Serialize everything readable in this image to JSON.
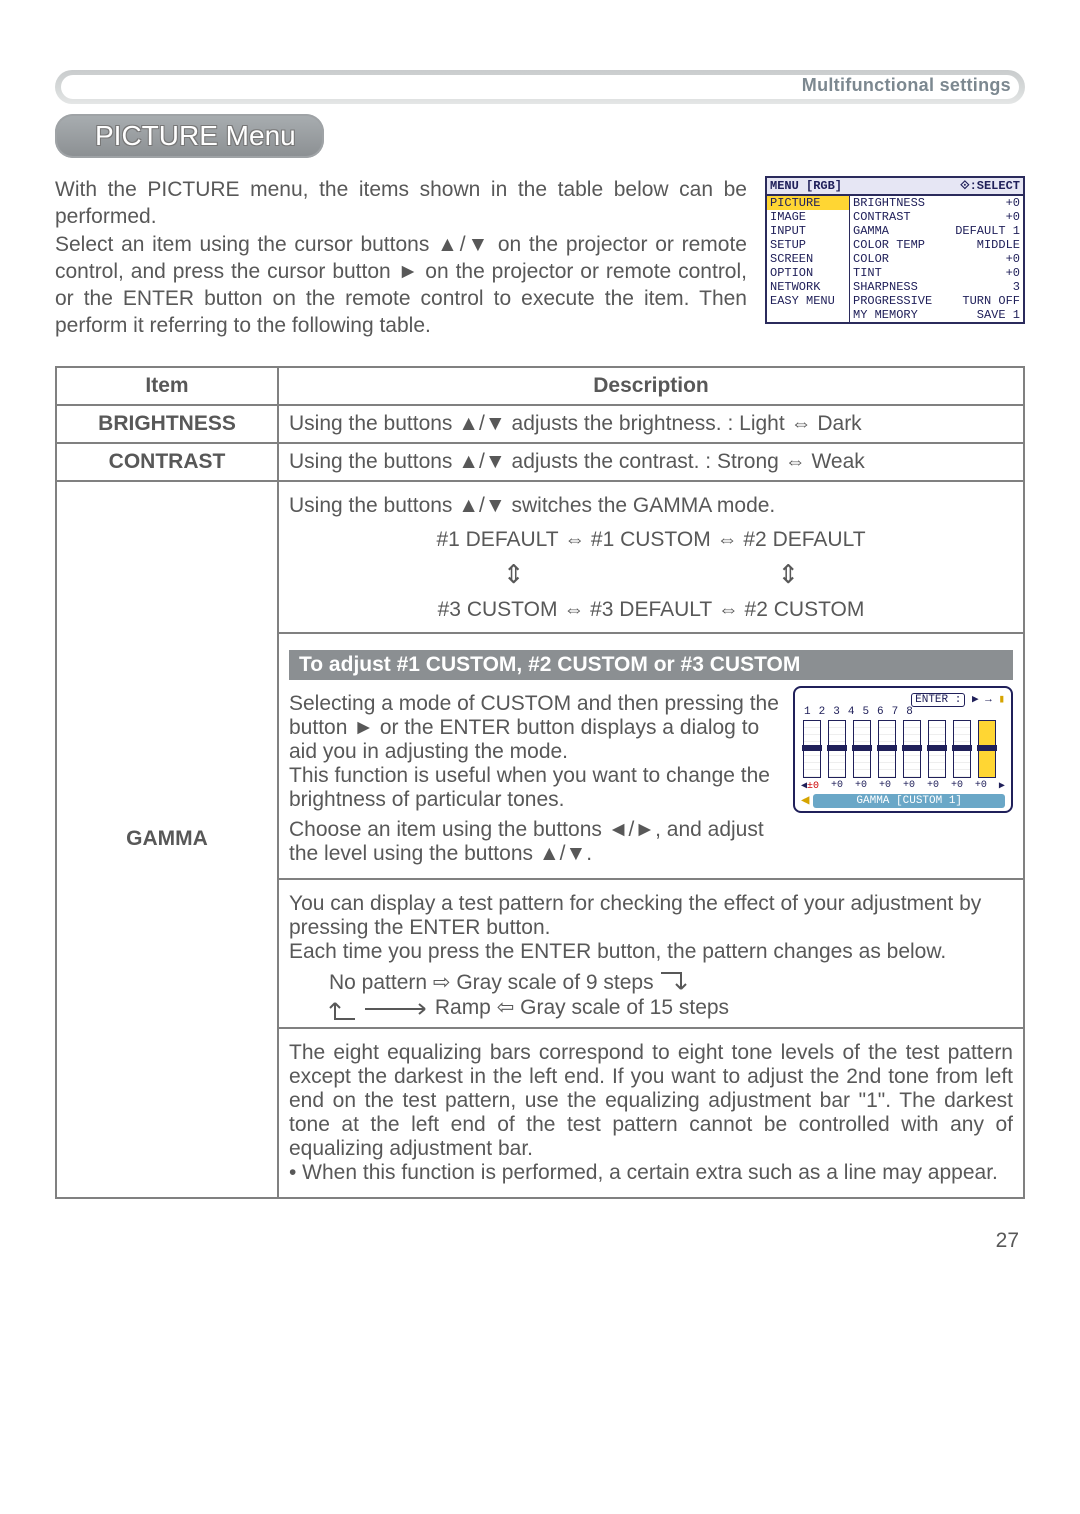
{
  "header": {
    "section_label": "Multifunctional settings"
  },
  "section_title": "PICTURE Menu",
  "intro": {
    "p1": "With the PICTURE menu, the items shown in the table below can be performed.",
    "p2": "Select an item using the cursor buttons ▲/▼ on the projector or remote control, and press the cursor button ► on the projector or remote control, or the ENTER button on the remote control to execute the item. Then perform it referring to the following table."
  },
  "osd": {
    "title_left": "MENU [RGB]",
    "title_right": ":SELECT",
    "left_items": [
      "PICTURE",
      "IMAGE",
      "INPUT",
      "SETUP",
      "SCREEN",
      "OPTION",
      "NETWORK",
      "EASY MENU"
    ],
    "active_index": 0,
    "right_rows": [
      {
        "k": "BRIGHTNESS",
        "v": "+0"
      },
      {
        "k": "CONTRAST",
        "v": "+0"
      },
      {
        "k": "GAMMA",
        "v": "DEFAULT 1"
      },
      {
        "k": "COLOR TEMP",
        "v": "MIDDLE"
      },
      {
        "k": "COLOR",
        "v": "+0"
      },
      {
        "k": "TINT",
        "v": "+0"
      },
      {
        "k": "SHARPNESS",
        "v": "3"
      },
      {
        "k": "PROGRESSIVE",
        "v": "TURN OFF"
      },
      {
        "k": "MY MEMORY",
        "v": "SAVE 1"
      }
    ]
  },
  "table": {
    "head_item": "Item",
    "head_desc": "Description",
    "rows": {
      "brightness": {
        "item": "BRIGHTNESS",
        "desc": "Using the buttons ▲/▼ adjusts the brightness. :    Light ⇔ Dark"
      },
      "contrast": {
        "item": "CONTRAST",
        "desc": "Using the buttons ▲/▼ adjusts the contrast. :    Strong ⇔ Weak"
      },
      "gamma": {
        "item": "GAMMA",
        "mode_intro": "Using the buttons ▲/▼ switches the GAMMA mode.",
        "row1": "#1 DEFAULT ⇔ #1 CUSTOM ⇔ #2 DEFAULT",
        "row2": "#3 CUSTOM ⇔ #3 DEFAULT ⇔ #2 CUSTOM",
        "subhead": "To adjust #1 CUSTOM, #2 CUSTOM or #3 CUSTOM",
        "para1": "Selecting a mode of CUSTOM and then pressing the button ► or the ENTER button displays a dialog to aid you in adjusting the mode.\nThis function is useful when you want to change the brightness of particular tones.",
        "para2": "Choose an item using the buttons ◄/►, and adjust the level using the buttons ▲/▼.",
        "para3": "You can display a test pattern for checking the effect of your adjustment by pressing the ENTER button.\nEach time you press the ENTER button, the pattern changes as below.",
        "loop1": "No pattern ⇨ Gray scale of 9 steps",
        "loop2": "Ramp ⇦ Gray scale of 15 steps",
        "para4": "The eight equalizing bars correspond to eight tone levels of the test pattern except the darkest in the left end. If you want to adjust the 2nd tone from left end on the test pattern, use the equalizing adjustment bar \"1\". The darkest tone at the left end of the test pattern cannot be controlled with any of equalizing adjustment bar.\n• When this function is performed, a certain extra such as a line may appear."
      }
    }
  },
  "eq": {
    "enter_label": "ENTER :",
    "nums": [
      "1",
      "2",
      "3",
      "4",
      "5",
      "6",
      "7",
      "8"
    ],
    "vals": [
      "+0",
      "+0",
      "+0",
      "+0",
      "+0",
      "+0",
      "+0",
      "+0"
    ],
    "footer": "GAMMA [CUSTOM 1]",
    "active_index": 7
  },
  "page_number": "27",
  "colors": {
    "osd_border": "#2b2b5c",
    "highlight": "#ffd633",
    "pill_bg": "#8b8f92",
    "text": "#585858",
    "eq_footer": "#6aa7c7"
  }
}
